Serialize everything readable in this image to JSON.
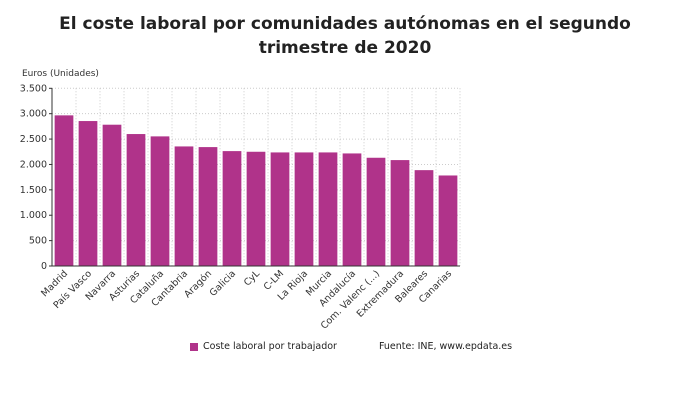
{
  "chart_data": {
    "type": "bar",
    "title": "El coste laboral por comunidades autónomas en el segundo trimestre de 2020",
    "title_lines": [
      "El coste laboral por comunidades autónomas en el segundo",
      "trimestre de 2020"
    ],
    "ylabel": "Euros (Unidades)",
    "xlabel": "",
    "ylim": [
      0,
      3500
    ],
    "yticks": [
      0,
      500,
      1000,
      1500,
      2000,
      2500,
      3000,
      3500
    ],
    "ytick_labels": [
      "0",
      "500",
      "1.000",
      "1.500",
      "2.000",
      "2.500",
      "3.000",
      "3.500"
    ],
    "grid": true,
    "legend_position": "bottom",
    "categories": [
      "Madrid",
      "País Vasco",
      "Navarra",
      "Asturias",
      "Cataluña",
      "Cantabria",
      "Aragón",
      "Galicia",
      "CyL",
      "C-LM",
      "La Rioja",
      "Murcia",
      "Andalucía",
      "Com. Valenc (...)",
      "Extremadura",
      "Baleares",
      "Canarias"
    ],
    "series": [
      {
        "name": "Coste laboral por trabajador",
        "color": "#b0338a",
        "values": [
          2967,
          2855,
          2783,
          2599,
          2553,
          2355,
          2342,
          2263,
          2250,
          2237,
          2237,
          2237,
          2217,
          2132,
          2086,
          1888,
          1783
        ]
      }
    ],
    "source": "Fuente: INE, www.epdata.es"
  }
}
